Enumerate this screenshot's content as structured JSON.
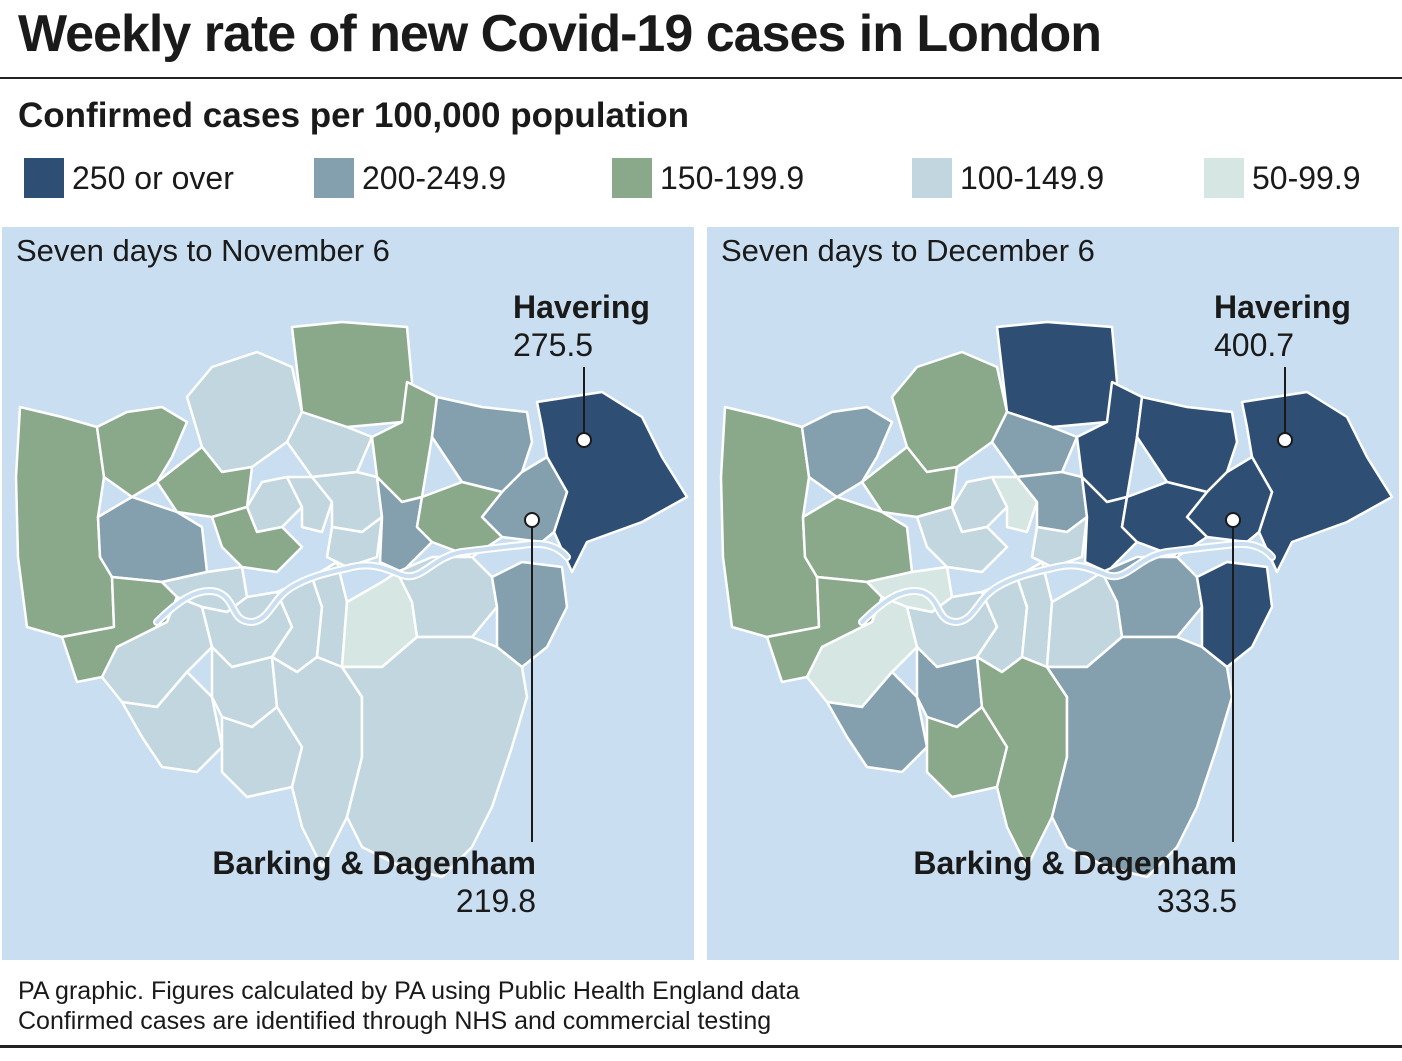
{
  "title": "Weekly rate of new Covid-19 cases in London",
  "subtitle": "Confirmed cases per 100,000 population",
  "legend": [
    {
      "label": "250 or over",
      "color": "#2e4e74"
    },
    {
      "label": "200-249.9",
      "color": "#84a0ae"
    },
    {
      "label": "150-199.9",
      "color": "#8aa88a"
    },
    {
      "label": "100-149.9",
      "color": "#c2d6df"
    },
    {
      "label": "50-99.9",
      "color": "#d6e6e2"
    }
  ],
  "colors": {
    "sea": "#c9def0",
    "thames": "#c9def0",
    "border": "#ffffff"
  },
  "maps": [
    {
      "title": "Seven days to November 6",
      "callouts": [
        {
          "name": "Havering",
          "value": "275.5"
        },
        {
          "name": "Barking & Dagenham",
          "value": "219.8"
        }
      ]
    },
    {
      "title": "Seven days to December 6",
      "callouts": [
        {
          "name": "Havering",
          "value": "400.7"
        },
        {
          "name": "Barking & Dagenham",
          "value": "333.5"
        }
      ]
    }
  ],
  "footer": {
    "line1": "PA graphic. Figures calculated by PA using Public Health England data",
    "line2": "Confirmed cases are identified through NHS and commercial testing"
  }
}
